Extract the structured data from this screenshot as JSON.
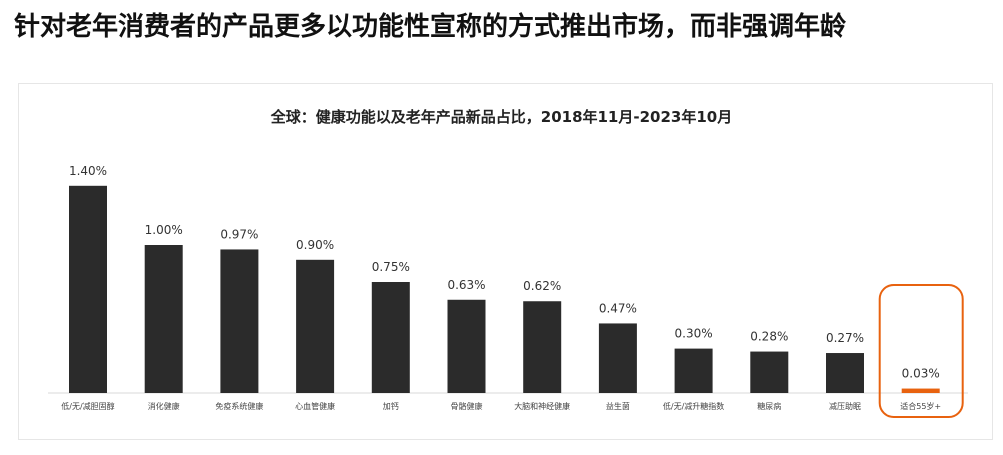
{
  "page_title": "针对老年消费者的产品更多以功能性宣称的方式推出市场，而非强调年龄",
  "chart_data": {
    "type": "bar",
    "title": "全球：健康功能以及老年产品新品占比，2018年11月-2023年10月",
    "categories": [
      "低/无/减胆固醇",
      "消化健康",
      "免疫系统健康",
      "心血管健康",
      "加钙",
      "骨骼健康",
      "大脑和神经健康",
      "益生菌",
      "低/无/减升糖指数",
      "糖尿病",
      "减压助眠",
      "适合55岁+"
    ],
    "values": [
      1.4,
      1.0,
      0.97,
      0.9,
      0.75,
      0.63,
      0.62,
      0.47,
      0.3,
      0.28,
      0.27,
      0.03
    ],
    "labels": [
      "1.40%",
      "1.00%",
      "0.97%",
      "0.90%",
      "0.75%",
      "0.63%",
      "0.62%",
      "0.47%",
      "0.30%",
      "0.28%",
      "0.27%",
      "0.03%"
    ],
    "unit": "%",
    "ylim": [
      0,
      1.5
    ],
    "grid": false,
    "bar_color": "#2b2b2b",
    "highlight_color": "#e8620f",
    "highlight_index": 11
  }
}
